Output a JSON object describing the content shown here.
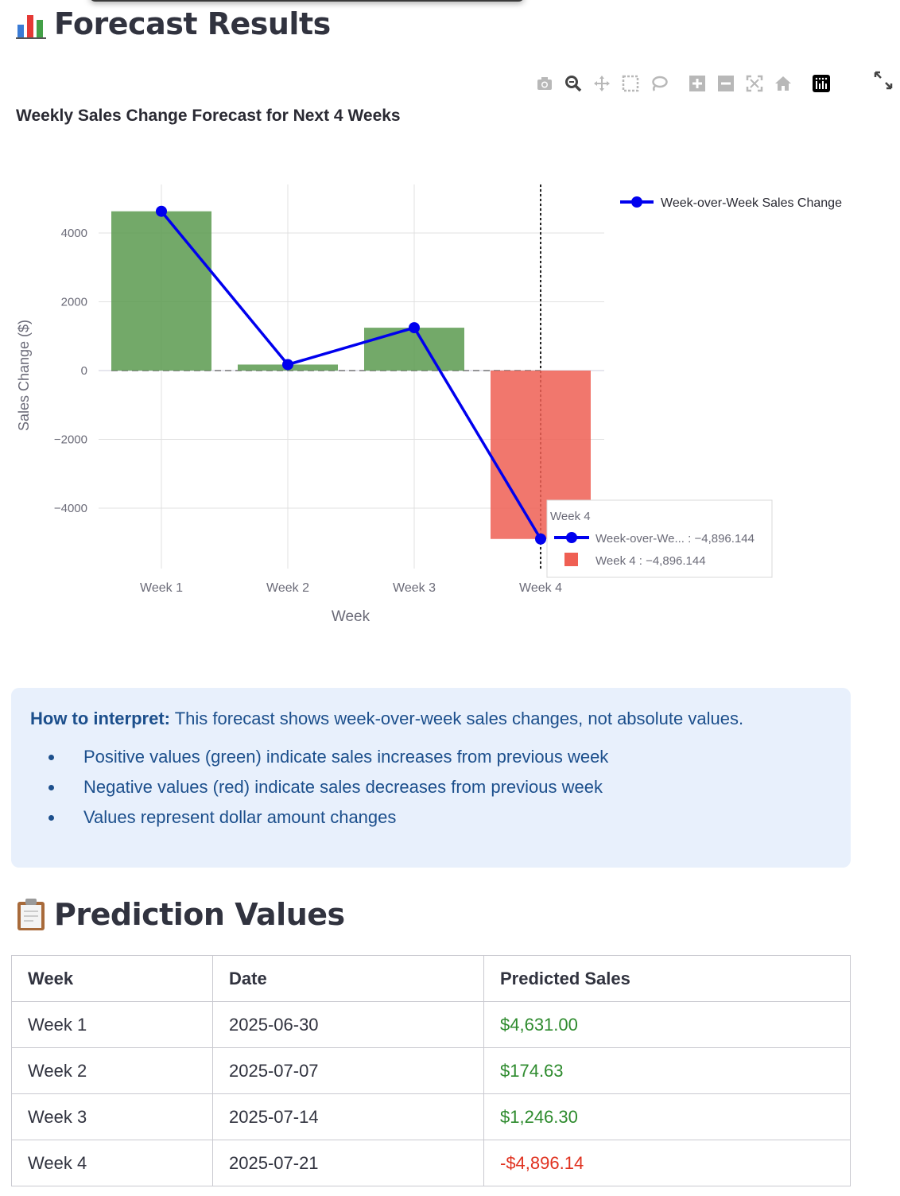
{
  "forecast_header": {
    "icon": "bar-chart-icon",
    "title": "Forecast Results"
  },
  "modebar": {
    "buttons": [
      "camera-icon",
      "zoom-icon",
      "pan-icon",
      "box-select-icon",
      "lasso-icon",
      "zoom-in-icon",
      "zoom-out-icon",
      "autoscale-icon",
      "reset-axes-icon",
      "plotly-logo-icon"
    ],
    "fullscreen": "expand-icon"
  },
  "chart_data": {
    "type": "bar",
    "title": "Weekly Sales Change Forecast for Next 4 Weeks",
    "xlabel": "Week",
    "ylabel": "Sales Change ($)",
    "categories": [
      "Week 1",
      "Week 2",
      "Week 3",
      "Week 4"
    ],
    "series": [
      {
        "name": "",
        "type": "bar",
        "values": [
          4631.0,
          174.63,
          1246.3,
          -4896.144
        ]
      },
      {
        "name": "Week-over-Week Sales Change",
        "type": "line",
        "values": [
          4631.0,
          174.63,
          1246.3,
          -4896.144
        ]
      }
    ],
    "yticks": [
      4000,
      2000,
      0,
      -2000,
      -4000
    ],
    "ytick_labels": [
      "4000",
      "2000",
      "0",
      "−2000",
      "−4000"
    ],
    "ylim": [
      -5400,
      5400
    ],
    "colors": {
      "positive": "#5b9a4f",
      "negative": "#ef5f53",
      "line": "#0000ee"
    },
    "grid": true,
    "legend_position": "top-right",
    "hover": {
      "title": "Week 4",
      "line_label": "Week-over-We... : −4,896.144",
      "bar_label": "Week 4 : −4,896.144",
      "category_index": 3
    }
  },
  "interpretation": {
    "bold": "How to interpret:",
    "text": " This forecast shows week-over-week sales changes, not absolute values.",
    "bullets": [
      "Positive values (green) indicate sales increases from previous week",
      "Negative values (red) indicate sales decreases from previous week",
      "Values represent dollar amount changes"
    ]
  },
  "predictions_header": {
    "icon": "clipboard-icon",
    "title": "Prediction Values"
  },
  "table": {
    "headers": [
      "Week",
      "Date",
      "Predicted Sales"
    ],
    "rows": [
      {
        "week": "Week 1",
        "date": "2025-06-30",
        "sales": "$4,631.00",
        "sign": "pos"
      },
      {
        "week": "Week 2",
        "date": "2025-07-07",
        "sales": "$174.63",
        "sign": "pos"
      },
      {
        "week": "Week 3",
        "date": "2025-07-14",
        "sales": "$1,246.30",
        "sign": "pos"
      },
      {
        "week": "Week 4",
        "date": "2025-07-21",
        "sales": "-$4,896.14",
        "sign": "neg"
      }
    ]
  }
}
